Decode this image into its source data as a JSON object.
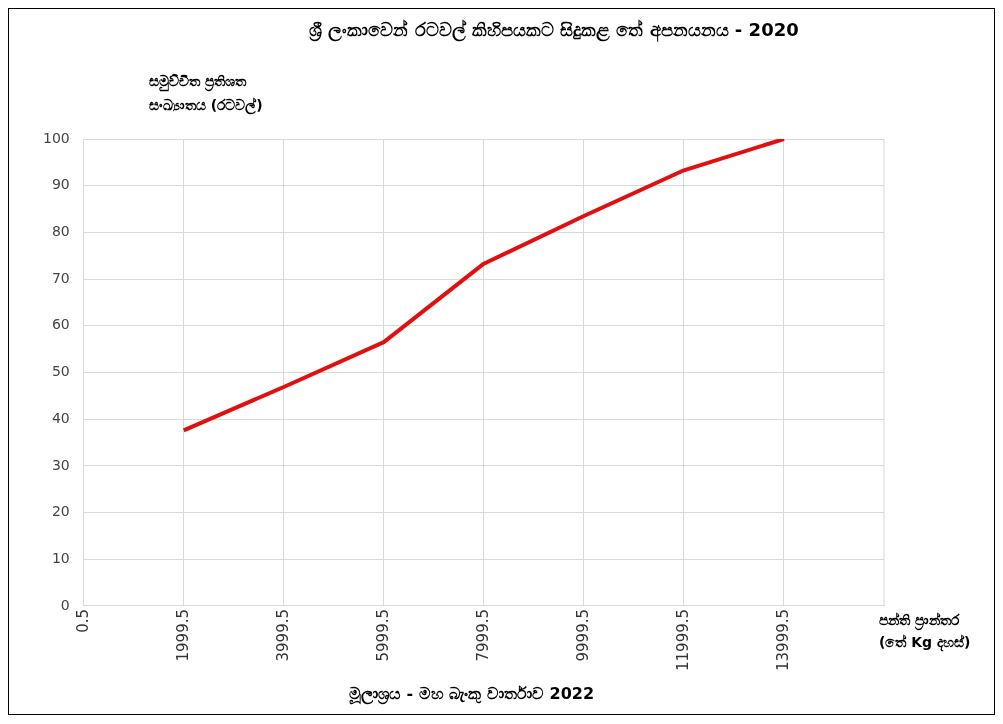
{
  "chart_data": {
    "type": "line",
    "title": "ශ්‍රී ලංකාවෙන් රටවල් කිහිපයකට සිදුකළ තේ අපනයනය  - 2020",
    "ylabel": "සමුච්චිත ප්‍රතිශත සංඛ්‍යාතය (රටවල්)",
    "xlabel": "පන්ති ප්‍රාන්තර (තේ Kg දහස්)",
    "annotations": [
      "මූලාශ්‍රය - මහ බැංකු වාර්තාව 2022"
    ],
    "x": [
      1999.5,
      3999.5,
      5999.5,
      7999.5,
      9999.5,
      11999.5,
      13999.5
    ],
    "series": [
      {
        "color": "#e01010",
        "values": [
          37.6,
          46.9,
          56.5,
          73.3,
          83.5,
          93.3,
          100
        ]
      }
    ],
    "xlim": [
      0.5,
      15999.5
    ],
    "xticks": [
      0.5,
      1999.5,
      3999.5,
      5999.5,
      7999.5,
      9999.5,
      11999.5,
      13999.5
    ],
    "ylim": [
      0,
      100
    ],
    "yticks": [
      0,
      10,
      20,
      30,
      40,
      50,
      60,
      70,
      80,
      90,
      100
    ],
    "grid": true,
    "legend": false,
    "marker": "none",
    "line_style": "solid"
  }
}
